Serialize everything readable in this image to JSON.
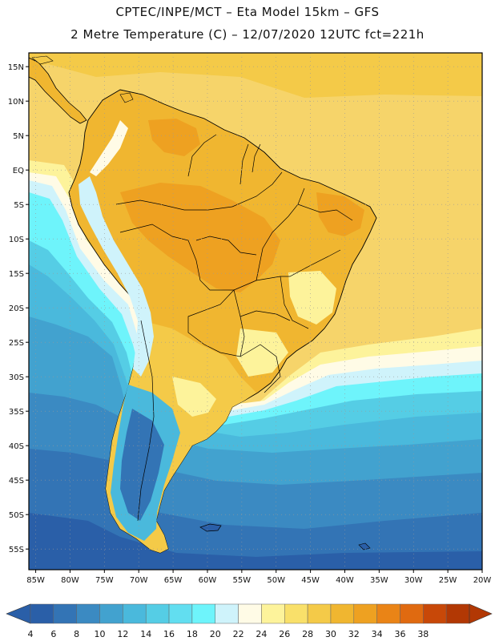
{
  "header": {
    "line1": "CPTEC/INPE/MCT –  Eta Model 15km – GFS",
    "line2": "2 Metre Temperature (C) – 12/07/2020 12UTC fct=221h"
  },
  "map": {
    "lon_range": [
      -86,
      -20
    ],
    "lat_range": [
      -58,
      17
    ],
    "lat_ticks": [
      {
        "value": 15,
        "label": "15N"
      },
      {
        "value": 10,
        "label": "10N"
      },
      {
        "value": 5,
        "label": "5N"
      },
      {
        "value": 0,
        "label": "EQ"
      },
      {
        "value": -5,
        "label": "5S"
      },
      {
        "value": -10,
        "label": "10S"
      },
      {
        "value": -15,
        "label": "15S"
      },
      {
        "value": -20,
        "label": "20S"
      },
      {
        "value": -25,
        "label": "25S"
      },
      {
        "value": -30,
        "label": "30S"
      },
      {
        "value": -35,
        "label": "35S"
      },
      {
        "value": -40,
        "label": "40S"
      },
      {
        "value": -45,
        "label": "45S"
      },
      {
        "value": -50,
        "label": "50S"
      },
      {
        "value": -55,
        "label": "55S"
      }
    ],
    "lon_ticks": [
      {
        "value": -85,
        "label": "85W"
      },
      {
        "value": -80,
        "label": "80W"
      },
      {
        "value": -75,
        "label": "75W"
      },
      {
        "value": -70,
        "label": "70W"
      },
      {
        "value": -65,
        "label": "65W"
      },
      {
        "value": -60,
        "label": "60W"
      },
      {
        "value": -55,
        "label": "55W"
      },
      {
        "value": -50,
        "label": "50W"
      },
      {
        "value": -45,
        "label": "45W"
      },
      {
        "value": -40,
        "label": "40W"
      },
      {
        "value": -35,
        "label": "35W"
      },
      {
        "value": -30,
        "label": "30W"
      },
      {
        "value": -25,
        "label": "25W"
      },
      {
        "value": -20,
        "label": "20W"
      }
    ]
  },
  "colorbar": {
    "labels": [
      "4",
      "6",
      "8",
      "10",
      "12",
      "14",
      "16",
      "18",
      "20",
      "22",
      "24",
      "26",
      "28",
      "30",
      "32",
      "34",
      "36",
      "38"
    ],
    "colors": [
      "#2a5fa8",
      "#3374b5",
      "#3b8ac2",
      "#42a2cf",
      "#4ab9dc",
      "#55cde5",
      "#62def0",
      "#6ef4fb",
      "#cff3fb",
      "#fffbe6",
      "#fdf39b",
      "#f9e06a",
      "#f4ca48",
      "#f0b630",
      "#eea121",
      "#ea8416",
      "#e06a10",
      "#c84808",
      "#b23804"
    ],
    "below_color": "#2a5fa8",
    "above_color": "#b23804"
  }
}
